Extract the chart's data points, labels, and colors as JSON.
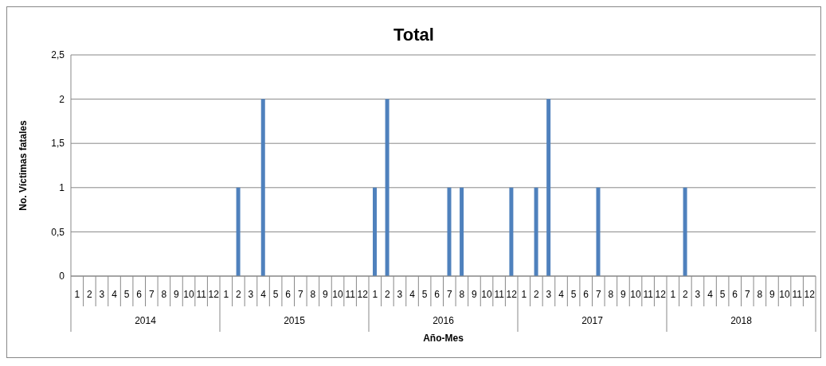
{
  "chart_data": {
    "type": "bar",
    "title": "Total",
    "xlabel": "Año-Mes",
    "ylabel": "No. Víctimas fatales",
    "categories": [
      "1",
      "2",
      "3",
      "4",
      "5",
      "6",
      "7",
      "8",
      "9",
      "10",
      "11",
      "12",
      "1",
      "2",
      "3",
      "4",
      "5",
      "6",
      "7",
      "8",
      "9",
      "10",
      "11",
      "12",
      "1",
      "2",
      "3",
      "4",
      "5",
      "6",
      "7",
      "8",
      "9",
      "10",
      "11",
      "12",
      "1",
      "2",
      "3",
      "4",
      "5",
      "6",
      "7",
      "8",
      "9",
      "10",
      "11",
      "12",
      "1",
      "2",
      "3",
      "4",
      "5",
      "6",
      "7",
      "8",
      "9",
      "10",
      "11",
      "12"
    ],
    "values": [
      0,
      0,
      0,
      0,
      0,
      0,
      0,
      0,
      0,
      0,
      0,
      0,
      0,
      1,
      0,
      2,
      0,
      0,
      0,
      0,
      0,
      0,
      0,
      0,
      1,
      2,
      0,
      0,
      0,
      0,
      1,
      1,
      0,
      0,
      0,
      1,
      0,
      1,
      2,
      0,
      0,
      0,
      1,
      0,
      0,
      0,
      0,
      0,
      0,
      1,
      0,
      0,
      0,
      0,
      0,
      0,
      0,
      0,
      0,
      0
    ],
    "color": "#4f81bd",
    "ylim": [
      0,
      2.5
    ],
    "yticks": [
      0,
      {
        "value": 0.5,
        "label": "0,5"
      },
      1,
      {
        "value": 1.5,
        "label": "1,5"
      },
      2,
      {
        "value": 2.5,
        "label": "2,5"
      }
    ],
    "grid": "y",
    "annotations": [
      "2014",
      "2015",
      "2016",
      "2017",
      "2018"
    ]
  }
}
